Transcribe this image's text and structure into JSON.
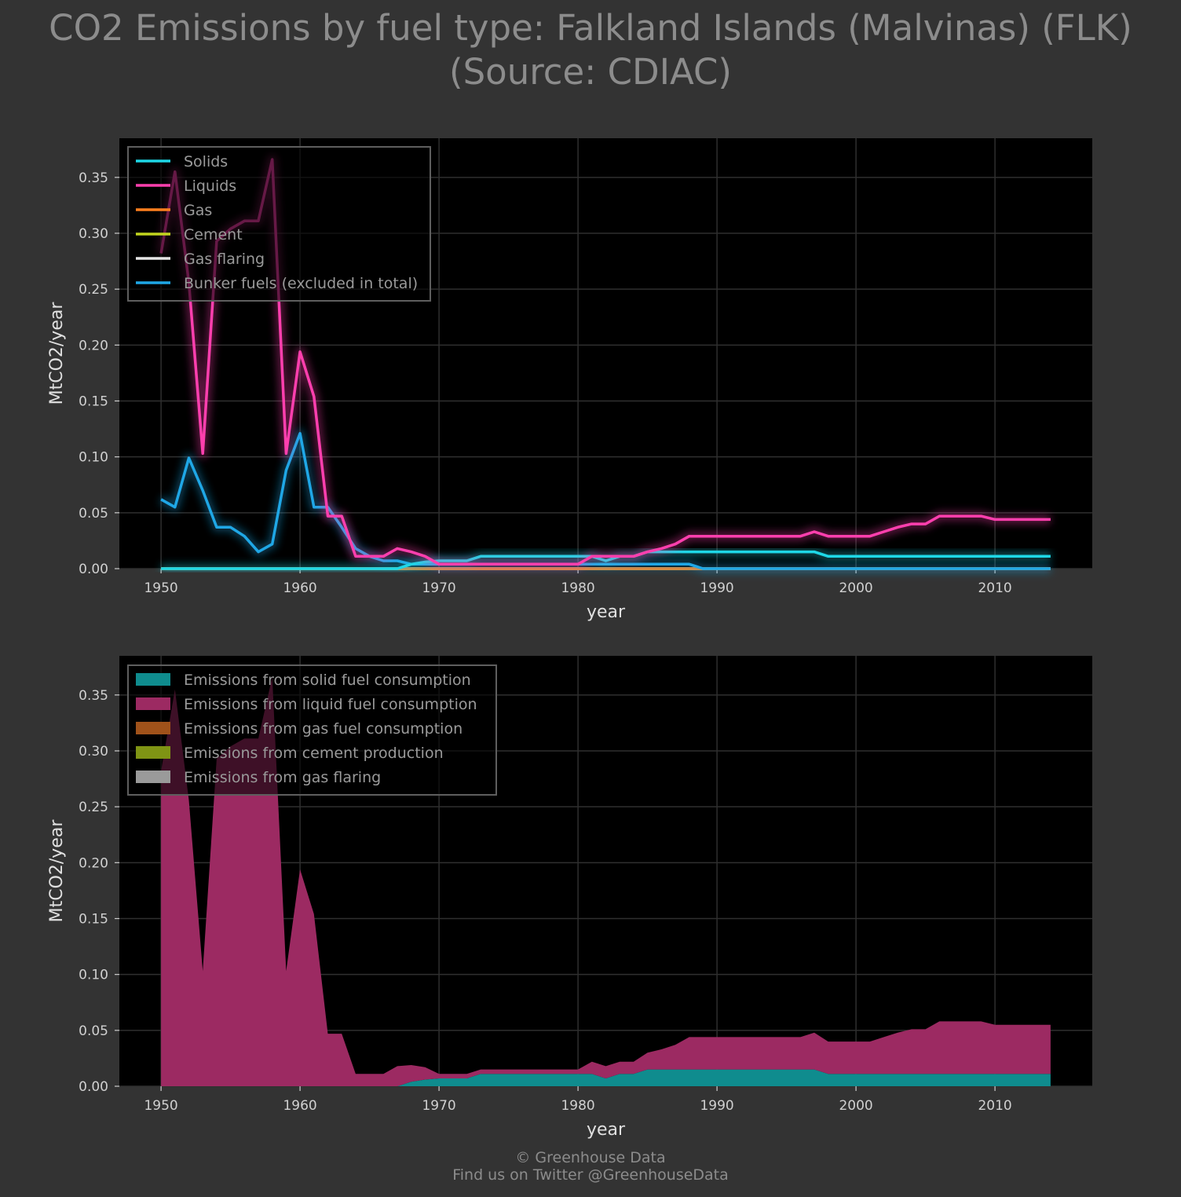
{
  "title": {
    "line1": "CO2 Emissions by fuel type: Falkland Islands (Malvinas) (FLK)",
    "line2": "(Source: CDIAC)"
  },
  "footer": {
    "line1": "© Greenhouse Data",
    "line2": "Find us on Twitter @GreenhouseData"
  },
  "colors": {
    "background": "#333333",
    "plot_background": "#000000",
    "grid": "#2f2f2f",
    "solids": "#1ed7e6",
    "liquids": "#ff3fae",
    "gas": "#ff7f1e",
    "cement": "#c2d61e",
    "gas_flaring": "#e6e6e6",
    "bunker": "#1fa7e6",
    "area_solid": "#0f8c8e",
    "area_liquid": "#9c2a62",
    "area_gas": "#a0521a",
    "area_cement": "#7f9414",
    "area_flaring": "#9a9a9a"
  },
  "chart_data": [
    {
      "type": "line",
      "xlabel": "year",
      "ylabel": "MtCO2/year",
      "xlim": [
        1947,
        2017
      ],
      "ylim": [
        0,
        0.385
      ],
      "xticks": [
        1950,
        1960,
        1970,
        1980,
        1990,
        2000,
        2010
      ],
      "yticks": [
        0.0,
        0.05,
        0.1,
        0.15,
        0.2,
        0.25,
        0.3,
        0.35
      ],
      "ytick_labels": [
        "0.00",
        "0.05",
        "0.10",
        "0.15",
        "0.20",
        "0.25",
        "0.30",
        "0.35"
      ],
      "grid": true,
      "legend_position": "upper-left",
      "x": [
        1950,
        1951,
        1952,
        1953,
        1954,
        1955,
        1956,
        1957,
        1958,
        1959,
        1960,
        1961,
        1962,
        1963,
        1964,
        1965,
        1966,
        1967,
        1968,
        1969,
        1970,
        1971,
        1972,
        1973,
        1974,
        1975,
        1976,
        1977,
        1978,
        1979,
        1980,
        1981,
        1982,
        1983,
        1984,
        1985,
        1986,
        1987,
        1988,
        1989,
        1990,
        1991,
        1992,
        1993,
        1994,
        1995,
        1996,
        1997,
        1998,
        1999,
        2000,
        2001,
        2002,
        2003,
        2004,
        2005,
        2006,
        2007,
        2008,
        2009,
        2010,
        2011,
        2012,
        2013,
        2014
      ],
      "series": [
        {
          "name": "Solids",
          "color_key": "solids",
          "values": [
            0,
            0,
            0,
            0,
            0,
            0,
            0,
            0,
            0,
            0,
            0,
            0,
            0,
            0,
            0,
            0,
            0,
            0,
            0.004,
            0.006,
            0.007,
            0.007,
            0.007,
            0.011,
            0.011,
            0.011,
            0.011,
            0.011,
            0.011,
            0.011,
            0.011,
            0.011,
            0.007,
            0.011,
            0.011,
            0.015,
            0.015,
            0.015,
            0.015,
            0.015,
            0.015,
            0.015,
            0.015,
            0.015,
            0.015,
            0.015,
            0.015,
            0.015,
            0.011,
            0.011,
            0.011,
            0.011,
            0.011,
            0.011,
            0.011,
            0.011,
            0.011,
            0.011,
            0.011,
            0.011,
            0.011,
            0.011,
            0.011,
            0.011,
            0.011
          ]
        },
        {
          "name": "Liquids",
          "color_key": "liquids",
          "values": [
            0.282,
            0.355,
            0.256,
            0.103,
            0.293,
            0.304,
            0.311,
            0.311,
            0.366,
            0.103,
            0.194,
            0.154,
            0.047,
            0.047,
            0.011,
            0.011,
            0.011,
            0.018,
            0.015,
            0.011,
            0.004,
            0.004,
            0.004,
            0.004,
            0.004,
            0.004,
            0.004,
            0.004,
            0.004,
            0.004,
            0.004,
            0.011,
            0.011,
            0.011,
            0.011,
            0.015,
            0.018,
            0.022,
            0.029,
            0.029,
            0.029,
            0.029,
            0.029,
            0.029,
            0.029,
            0.029,
            0.029,
            0.033,
            0.029,
            0.029,
            0.029,
            0.029,
            0.033,
            0.037,
            0.04,
            0.04,
            0.047,
            0.047,
            0.047,
            0.047,
            0.044,
            0.044,
            0.044,
            0.044,
            0.044
          ]
        },
        {
          "name": "Gas",
          "color_key": "gas",
          "values": [
            0,
            0,
            0,
            0,
            0,
            0,
            0,
            0,
            0,
            0,
            0,
            0,
            0,
            0,
            0,
            0,
            0,
            0,
            0,
            0,
            0,
            0,
            0,
            0,
            0,
            0,
            0,
            0,
            0,
            0,
            0,
            0,
            0,
            0,
            0,
            0,
            0,
            0,
            0,
            0,
            0,
            0,
            0,
            0,
            0,
            0,
            0,
            0,
            0,
            0,
            0,
            0,
            0,
            0,
            0,
            0,
            0,
            0,
            0,
            0,
            0,
            0,
            0,
            0,
            0
          ]
        },
        {
          "name": "Cement",
          "color_key": "cement",
          "values": [
            0,
            0,
            0,
            0,
            0,
            0,
            0,
            0,
            0,
            0,
            0,
            0,
            0,
            0,
            0,
            0,
            0,
            0,
            0,
            0,
            0,
            0,
            0,
            0,
            0,
            0,
            0,
            0,
            0,
            0,
            0,
            0,
            0,
            0,
            0,
            0,
            0,
            0,
            0,
            0,
            0,
            0,
            0,
            0,
            0,
            0,
            0,
            0,
            0,
            0,
            0,
            0,
            0,
            0,
            0,
            0,
            0,
            0,
            0,
            0,
            0,
            0,
            0,
            0,
            0
          ]
        },
        {
          "name": "Gas flaring",
          "color_key": "gas_flaring",
          "values": [
            0,
            0,
            0,
            0,
            0,
            0,
            0,
            0,
            0,
            0,
            0,
            0,
            0,
            0,
            0,
            0,
            0,
            0,
            0,
            0,
            0,
            0,
            0,
            0,
            0,
            0,
            0,
            0,
            0,
            0,
            0,
            0,
            0,
            0,
            0,
            0,
            0,
            0,
            0,
            0,
            0,
            0,
            0,
            0,
            0,
            0,
            0,
            0,
            0,
            0,
            0,
            0,
            0,
            0,
            0,
            0,
            0,
            0,
            0,
            0,
            0,
            0,
            0,
            0,
            0
          ]
        },
        {
          "name": "Bunker fuels (excluded in total)",
          "color_key": "bunker",
          "values": [
            0.062,
            0.055,
            0.099,
            0.07,
            0.037,
            0.037,
            0.029,
            0.015,
            0.022,
            0.088,
            0.121,
            0.055,
            0.055,
            0.037,
            0.018,
            0.011,
            0.007,
            0.007,
            0.004,
            0.004,
            0.004,
            0.004,
            0.004,
            0.004,
            0.004,
            0.004,
            0.004,
            0.004,
            0.004,
            0.004,
            0.004,
            0.004,
            0.004,
            0.004,
            0.004,
            0.004,
            0.004,
            0.004,
            0.004,
            0,
            0,
            0,
            0,
            0,
            0,
            0,
            0,
            0,
            0,
            0,
            0,
            0,
            0,
            0,
            0,
            0,
            0,
            0,
            0,
            0,
            0,
            0,
            0,
            0,
            0
          ]
        }
      ]
    },
    {
      "type": "area",
      "stacked": true,
      "xlabel": "year",
      "ylabel": "MtCO2/year",
      "xlim": [
        1947,
        2017
      ],
      "ylim": [
        0,
        0.385
      ],
      "xticks": [
        1950,
        1960,
        1970,
        1980,
        1990,
        2000,
        2010
      ],
      "yticks": [
        0.0,
        0.05,
        0.1,
        0.15,
        0.2,
        0.25,
        0.3,
        0.35
      ],
      "ytick_labels": [
        "0.00",
        "0.05",
        "0.10",
        "0.15",
        "0.20",
        "0.25",
        "0.30",
        "0.35"
      ],
      "grid": true,
      "legend_position": "upper-left",
      "series": [
        {
          "name": "Emissions from solid fuel consumption",
          "color_key": "area_solid",
          "source": "Solids"
        },
        {
          "name": "Emissions from liquid fuel consumption",
          "color_key": "area_liquid",
          "source": "Liquids"
        },
        {
          "name": "Emissions from gas fuel consumption",
          "color_key": "area_gas",
          "source": "Gas"
        },
        {
          "name": "Emissions from cement production",
          "color_key": "area_cement",
          "source": "Cement"
        },
        {
          "name": "Emissions from gas flaring",
          "color_key": "area_flaring",
          "source": "Gas flaring"
        }
      ]
    }
  ]
}
